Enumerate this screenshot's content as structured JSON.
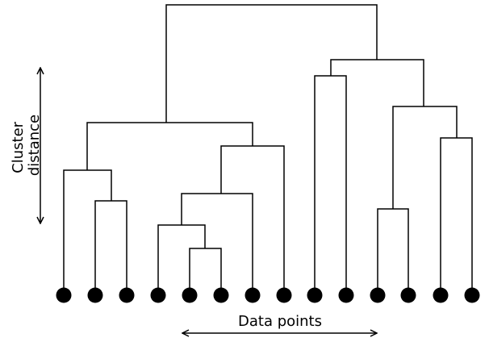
{
  "labels": {
    "y_axis_line1": "Cluster",
    "y_axis_line2": "distance",
    "x_axis": "Data points"
  },
  "colors": {
    "line": "#000000",
    "point": "#000000",
    "background": "#ffffff"
  },
  "leaf_count": 14
}
